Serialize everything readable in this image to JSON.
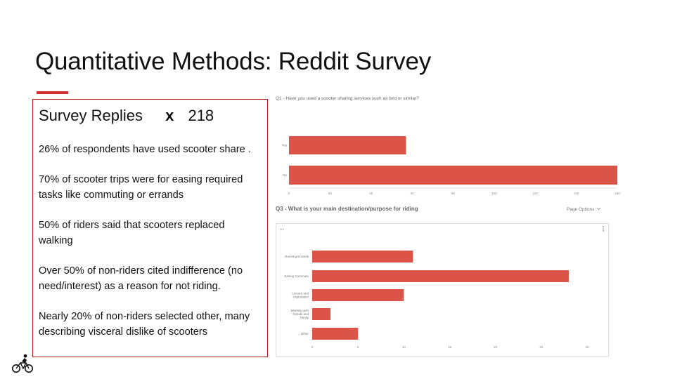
{
  "slide": {
    "title": "Quantitative Methods: Reddit Survey",
    "accent_color": "#d32f2f"
  },
  "summary": {
    "replies_label": "Survey Replies",
    "multiplier": "x",
    "replies_count": "218",
    "points": [
      "26% of respondents have used scooter share .",
      "70% of scooter trips were for easing required tasks like commuting or errands",
      "50% of riders said that scooters replaced walking",
      "Over 50% of non-riders cited indifference (no need/interest) as a reason for not riding.",
      "Nearly 20% of non-riders selected other, many describing visceral dislike of scooters"
    ]
  },
  "q3_header": {
    "page_options": "Page Options",
    "chevron_icon": "chevron-down-icon",
    "more_icon": "vertical-dots-icon"
  },
  "footer_icon": "cyclist-icon",
  "chart_data": [
    {
      "type": "bar",
      "orientation": "horizontal",
      "title": "Q1 - Have you used a scooter sharing services such as bird or similar?",
      "categories": [
        "Yes",
        "No"
      ],
      "values": [
        57,
        161
      ],
      "xlim": [
        0,
        160
      ],
      "ticks": [
        0,
        20,
        40,
        60,
        80,
        100,
        120,
        140,
        160
      ],
      "bar_color": "#dc5448",
      "grid": false
    },
    {
      "type": "bar",
      "orientation": "horizontal",
      "title": "Q3 - What is your main destination/purpose for riding",
      "categories": [
        "Running Errands",
        "Easing Commute",
        "Leisure and exploration",
        "Meeting with friends and family",
        "Other"
      ],
      "values": [
        11,
        28,
        10,
        2,
        5
      ],
      "xlim": [
        0,
        30
      ],
      "ticks": [
        0,
        5,
        10,
        15,
        20,
        25,
        30
      ],
      "bar_color": "#dc5448",
      "grid": false
    }
  ]
}
